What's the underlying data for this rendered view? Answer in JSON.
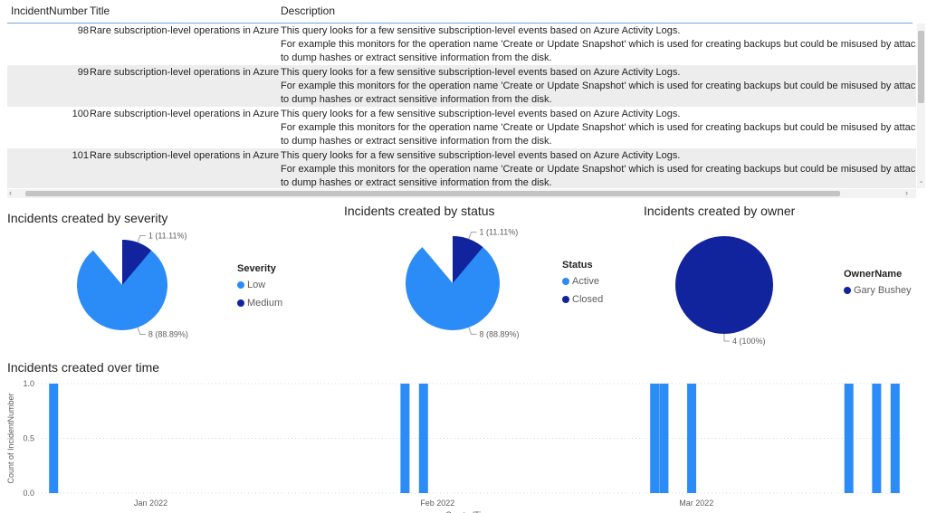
{
  "table": {
    "columns": [
      "IncidentNumber",
      "Title",
      "Description"
    ],
    "rows": [
      {
        "incident_number": "98",
        "title": "Rare subscription-level operations in Azure",
        "description": [
          "This query looks for a few sensitive subscription-level events based on Azure Activity Logs.",
          "For example this monitors for the operation name 'Create or Update Snapshot' which is used for creating backups but could be misused by attackers",
          "to dump hashes or extract sensitive information from the disk."
        ]
      },
      {
        "incident_number": "99",
        "title": "Rare subscription-level operations in Azure",
        "description": [
          "This query looks for a few sensitive subscription-level events based on Azure Activity Logs.",
          "For example this monitors for the operation name 'Create or Update Snapshot' which is used for creating backups but could be misused by attackers",
          "to dump hashes or extract sensitive information from the disk."
        ]
      },
      {
        "incident_number": "100",
        "title": "Rare subscription-level operations in Azure",
        "description": [
          "This query looks for a few sensitive subscription-level events based on Azure Activity Logs.",
          "For example this monitors for the operation name 'Create or Update Snapshot' which is used for creating backups but could be misused by attackers",
          "to dump hashes or extract sensitive information from the disk."
        ]
      },
      {
        "incident_number": "101",
        "title": "Rare subscription-level operations in Azure",
        "description": [
          "This query looks for a few sensitive subscription-level events based on Azure Activity Logs.",
          "For example this monitors for the operation name 'Create or Update Snapshot' which is used for creating backups but could be misused by attackers",
          "to dump hashes or extract sensitive information from the disk."
        ]
      }
    ],
    "scroll_up_glyph": "‹",
    "scroll_down_glyph": "›",
    "scroll_v_glyph": "⌄"
  },
  "colors": {
    "light_blue": "#2B8CF7",
    "dark_blue": "#12239E",
    "navy": "#1A2A8C"
  },
  "chart_data": [
    {
      "type": "pie",
      "title": "Incidents created by severity",
      "legend_title": "Severity",
      "legend_placement": "right",
      "slices": [
        {
          "name": "Low",
          "value": 8,
          "label": "8 (88.89%)",
          "color": "#2B8CF7"
        },
        {
          "name": "Medium",
          "value": 1,
          "label": "1 (11.11%)",
          "color": "#12239E"
        }
      ]
    },
    {
      "type": "pie",
      "title": "Incidents created by status",
      "legend_title": "Status",
      "legend_placement": "right",
      "slices": [
        {
          "name": "Active",
          "value": 8,
          "label": "8 (88.89%)",
          "color": "#2B8CF7"
        },
        {
          "name": "Closed",
          "value": 1,
          "label": "1 (11.11%)",
          "color": "#12239E"
        }
      ]
    },
    {
      "type": "pie",
      "title": "Incidents created by owner",
      "legend_title": "OwnerName",
      "legend_placement": "right",
      "slices": [
        {
          "name": "Gary Bushey",
          "value": 4,
          "label": "4 (100%)",
          "color": "#12239E"
        }
      ]
    },
    {
      "type": "bar",
      "title": "Incidents created over time",
      "ylabel": "Count of IncidentNumber",
      "xlabel": "CreatedTime",
      "ylim": [
        0,
        1
      ],
      "y_ticks": [
        "0.0",
        "0.5",
        "1.0"
      ],
      "x_range": [
        "2021-12-20",
        "2022-03-22"
      ],
      "x_ticks": [
        {
          "label": "Jan 2022",
          "date": "2022-01-01"
        },
        {
          "label": "Feb 2022",
          "date": "2022-02-01"
        },
        {
          "label": "Mar 2022",
          "date": "2022-03-01"
        }
      ],
      "grid": true,
      "bar_color": "#2B8CF7",
      "points": [
        {
          "date": "2021-12-21",
          "value": 1
        },
        {
          "date": "2022-01-28",
          "value": 1
        },
        {
          "date": "2022-01-30",
          "value": 1
        },
        {
          "date": "2022-02-24",
          "value": 1
        },
        {
          "date": "2022-02-25",
          "value": 1
        },
        {
          "date": "2022-02-28",
          "value": 1
        },
        {
          "date": "2022-03-17",
          "value": 1
        },
        {
          "date": "2022-03-20",
          "value": 1
        },
        {
          "date": "2022-03-22",
          "value": 1
        }
      ]
    }
  ]
}
